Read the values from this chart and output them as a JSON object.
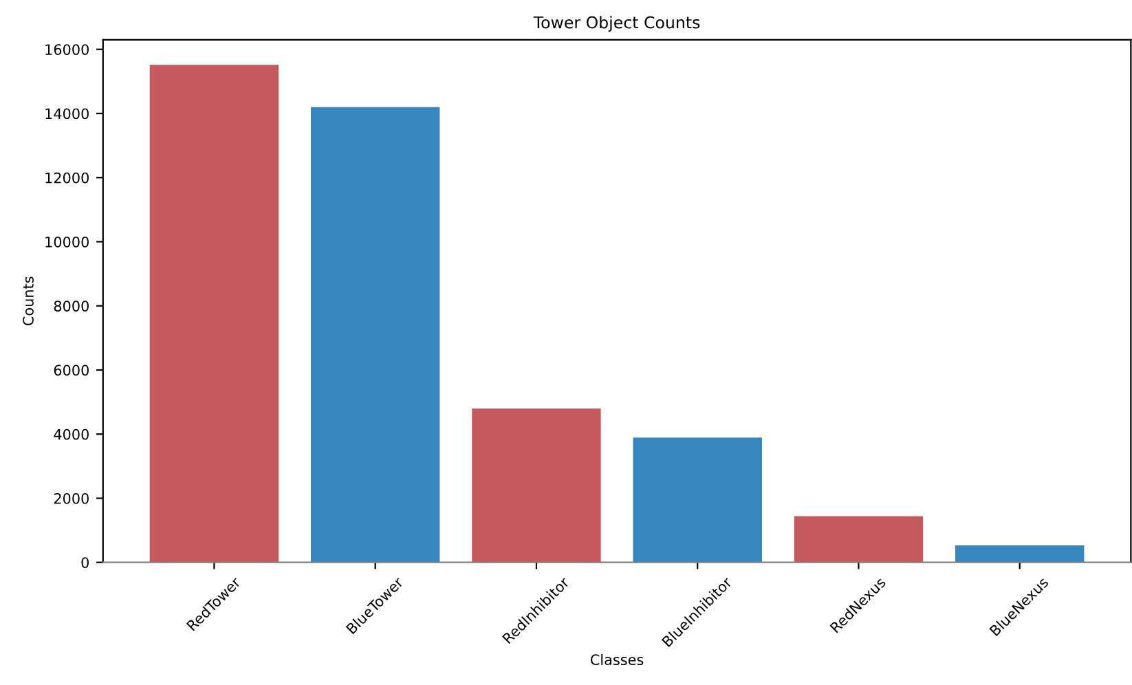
{
  "chart_data": {
    "type": "bar",
    "title": "Tower Object Counts",
    "xlabel": "Classes",
    "ylabel": "Counts",
    "categories": [
      "RedTower",
      "BlueTower",
      "RedInhibitor",
      "BlueInhibitor",
      "RedNexus",
      "BlueNexus"
    ],
    "values": [
      15520,
      14200,
      4800,
      3890,
      1440,
      530
    ],
    "colors": [
      "#c45a5e",
      "#3787be",
      "#c45a5e",
      "#3787be",
      "#c45a5e",
      "#3787be"
    ],
    "ylim": [
      0,
      16300
    ],
    "yticks": [
      0,
      2000,
      4000,
      6000,
      8000,
      10000,
      12000,
      14000,
      16000
    ],
    "grid": false,
    "legend": false
  }
}
